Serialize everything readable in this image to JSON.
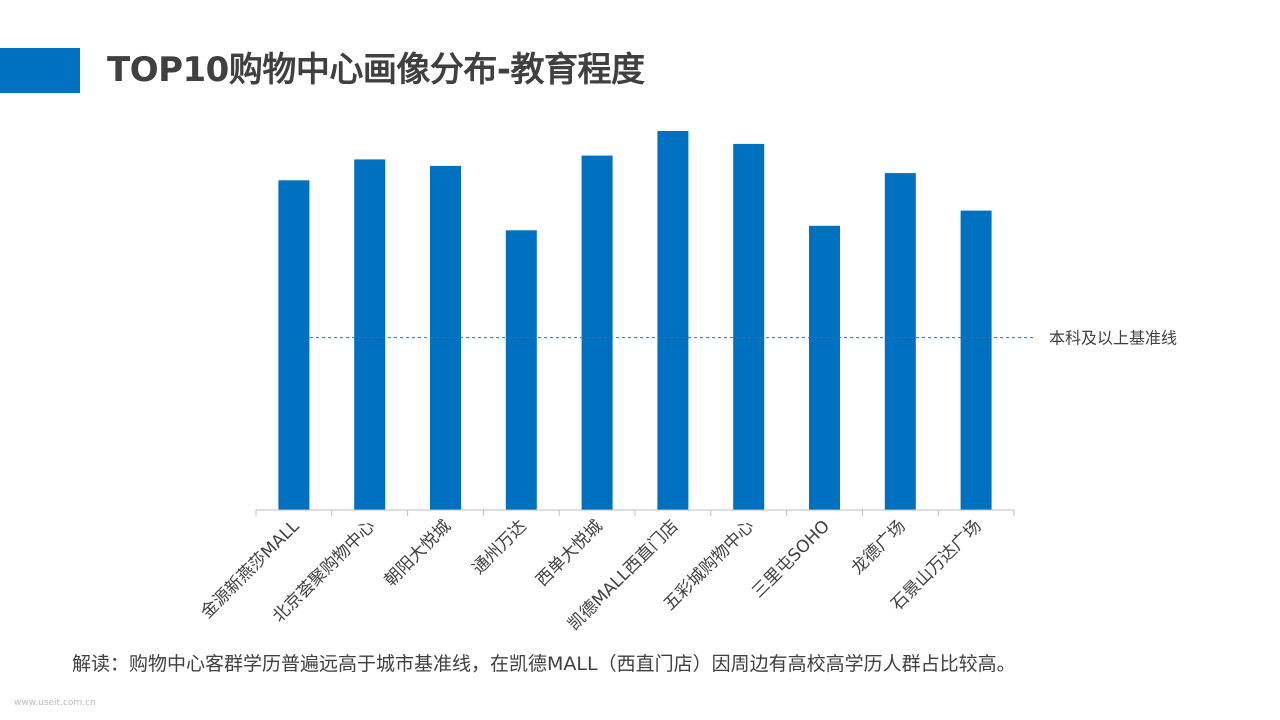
{
  "title": "TOP10购物中心画像分布-教育程度",
  "chart_data": {
    "type": "bar",
    "categories": [
      "金源新燕莎MALL",
      "北京荟聚购物中心",
      "朝阳大悦城",
      "通州万达",
      "西单大悦城",
      "凯德MALL西直门店",
      "五彩城购物中心",
      "三里屯SOHO",
      "龙德广场",
      "石景山万达广场"
    ],
    "values": [
      87,
      92.5,
      90.8,
      73.8,
      93.5,
      100,
      96.6,
      75,
      88.9,
      79
    ],
    "reference_line": {
      "value": 45.5,
      "label": "本科及以上基准线"
    },
    "ylim": [
      0,
      100
    ],
    "grid": false,
    "color": "#0070C0"
  },
  "note": "解读：购物中心客群学历普遍远高于城市基准线，在凯德MALL（西直门店）因周边有高校高学历人群占比较高。",
  "watermark": "www.useit.com.cn"
}
